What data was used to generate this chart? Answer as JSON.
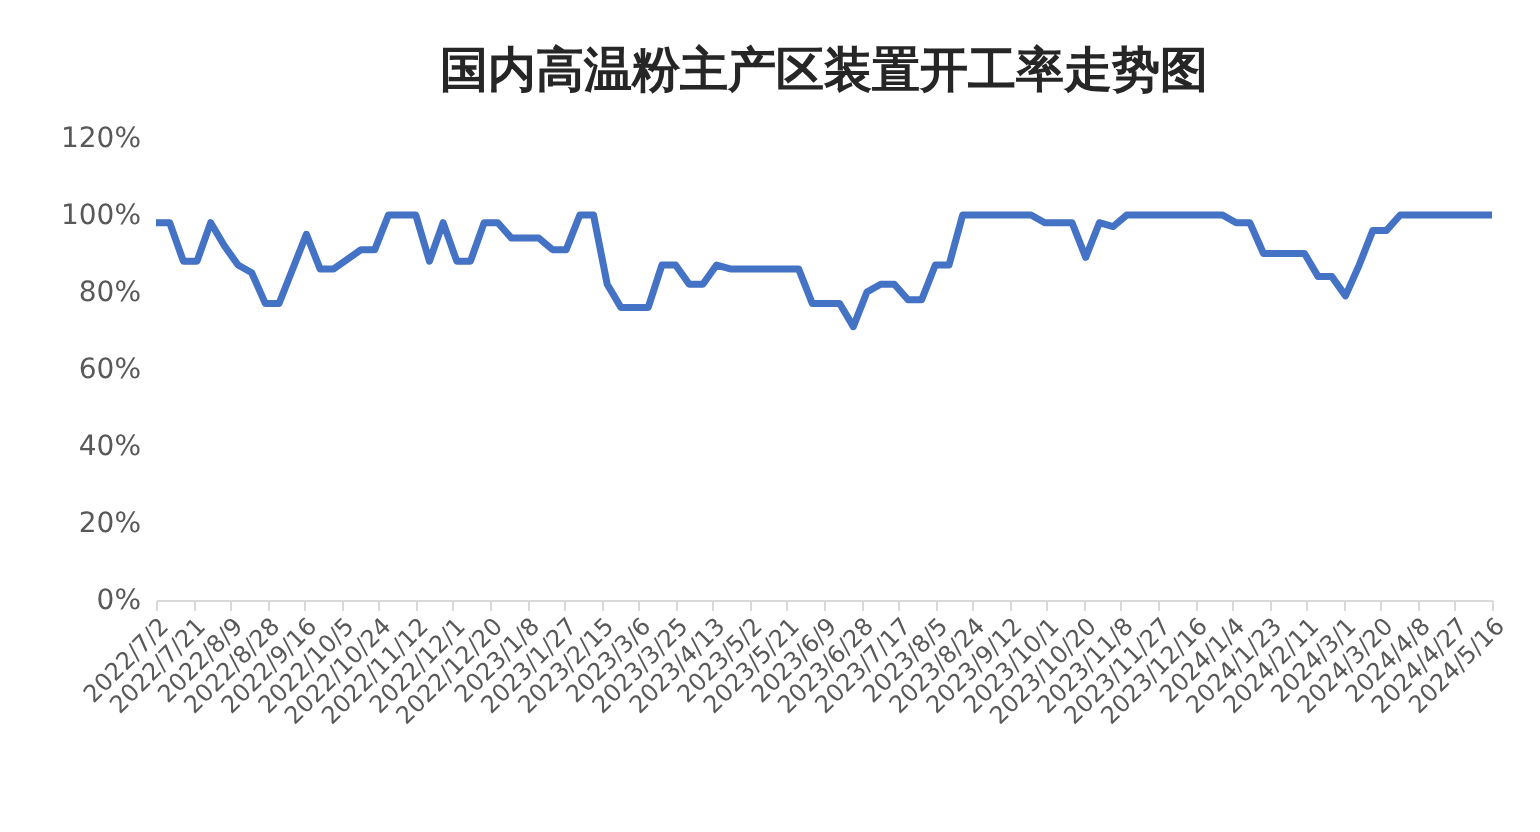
{
  "chart_data": {
    "type": "line",
    "title": "国内高温粉主产区装置开工率走势图",
    "x": [
      "2022-07-02",
      "2022-07-09",
      "2022-07-16",
      "2022-07-23",
      "2022-07-30",
      "2022-08-06",
      "2022-08-13",
      "2022-08-20",
      "2022-08-27",
      "2022-09-03",
      "2022-09-17",
      "2022-09-24",
      "2022-10-01",
      "2022-10-15",
      "2022-10-22",
      "2022-10-29",
      "2022-11-12",
      "2022-11-19",
      "2022-11-26",
      "2022-12-03",
      "2022-12-10",
      "2022-12-17",
      "2022-12-24",
      "2022-12-31",
      "2023-01-14",
      "2023-01-21",
      "2023-01-28",
      "2023-02-04",
      "2023-02-11",
      "2023-02-18",
      "2023-02-25",
      "2023-03-11",
      "2023-03-18",
      "2023-03-25",
      "2023-04-01",
      "2023-04-08",
      "2023-04-15",
      "2023-04-22",
      "2023-05-27",
      "2023-06-03",
      "2023-06-17",
      "2023-06-24",
      "2023-07-01",
      "2023-07-08",
      "2023-07-15",
      "2023-07-22",
      "2023-07-29",
      "2023-08-05",
      "2023-08-12",
      "2023-08-19",
      "2023-09-23",
      "2023-09-30",
      "2023-10-14",
      "2023-10-21",
      "2023-10-28",
      "2023-11-04",
      "2023-11-11",
      "2023-12-30",
      "2024-01-06",
      "2024-01-13",
      "2024-01-20",
      "2024-02-10",
      "2024-02-17",
      "2024-02-24",
      "2024-03-02",
      "2024-03-09",
      "2024-03-16",
      "2024-03-23",
      "2024-03-30",
      "2024-05-16"
    ],
    "series": [
      {
        "color": "#4472c4",
        "values": [
          98,
          98,
          88,
          88,
          98,
          92,
          87,
          85,
          77,
          77,
          95,
          86,
          86,
          91,
          91,
          100,
          100,
          88,
          98,
          88,
          88,
          98,
          98,
          94,
          94,
          91,
          91,
          100,
          100,
          82,
          76,
          76,
          87,
          87,
          82,
          82,
          87,
          86,
          86,
          77,
          77,
          71,
          80,
          82,
          82,
          78,
          78,
          87,
          87,
          100,
          100,
          98,
          98,
          89,
          98,
          97,
          100,
          100,
          98,
          98,
          90,
          90,
          84,
          84,
          79,
          87,
          96,
          96,
          100,
          100
        ]
      }
    ],
    "xlim": [
      "2022-07-02",
      "2024-05-16"
    ],
    "xticks": [
      {
        "value": "2022-07-02",
        "label": "2022/7/2"
      },
      {
        "value": "2022-07-21",
        "label": "2022/7/21"
      },
      {
        "value": "2022-08-09",
        "label": "2022/8/9"
      },
      {
        "value": "2022-08-28",
        "label": "2022/8/28"
      },
      {
        "value": "2022-09-16",
        "label": "2022/9/16"
      },
      {
        "value": "2022-10-05",
        "label": "2022/10/5"
      },
      {
        "value": "2022-10-24",
        "label": "2022/10/24"
      },
      {
        "value": "2022-11-12",
        "label": "2022/11/12"
      },
      {
        "value": "2022-12-01",
        "label": "2022/12/1"
      },
      {
        "value": "2022-12-20",
        "label": "2022/12/20"
      },
      {
        "value": "2023-01-08",
        "label": "2023/1/8"
      },
      {
        "value": "2023-01-27",
        "label": "2023/1/27"
      },
      {
        "value": "2023-02-15",
        "label": "2023/2/15"
      },
      {
        "value": "2023-03-06",
        "label": "2023/3/6"
      },
      {
        "value": "2023-03-25",
        "label": "2023/3/25"
      },
      {
        "value": "2023-04-13",
        "label": "2023/4/13"
      },
      {
        "value": "2023-05-02",
        "label": "2023/5/2"
      },
      {
        "value": "2023-05-21",
        "label": "2023/5/21"
      },
      {
        "value": "2023-06-09",
        "label": "2023/6/9"
      },
      {
        "value": "2023-06-28",
        "label": "2023/6/28"
      },
      {
        "value": "2023-07-17",
        "label": "2023/7/17"
      },
      {
        "value": "2023-08-05",
        "label": "2023/8/5"
      },
      {
        "value": "2023-08-24",
        "label": "2023/8/24"
      },
      {
        "value": "2023-09-12",
        "label": "2023/9/12"
      },
      {
        "value": "2023-10-01",
        "label": "2023/10/1"
      },
      {
        "value": "2023-10-20",
        "label": "2023/10/20"
      },
      {
        "value": "2023-11-08",
        "label": "2023/11/8"
      },
      {
        "value": "2023-11-27",
        "label": "2023/11/27"
      },
      {
        "value": "2023-12-16",
        "label": "2023/12/16"
      },
      {
        "value": "2024-01-04",
        "label": "2024/1/4"
      },
      {
        "value": "2024-01-23",
        "label": "2024/1/23"
      },
      {
        "value": "2024-02-11",
        "label": "2024/2/11"
      },
      {
        "value": "2024-03-01",
        "label": "2024/3/1"
      },
      {
        "value": "2024-03-20",
        "label": "2024/3/20"
      },
      {
        "value": "2024-04-08",
        "label": "2024/4/8"
      },
      {
        "value": "2024-04-27",
        "label": "2024/4/27"
      },
      {
        "value": "2024-05-16",
        "label": "2024/5/16"
      }
    ],
    "ylim": [
      0,
      120
    ],
    "yticks": [
      {
        "value": 0,
        "label": "0%"
      },
      {
        "value": 20,
        "label": "20%"
      },
      {
        "value": 40,
        "label": "40%"
      },
      {
        "value": 60,
        "label": "60%"
      },
      {
        "value": 80,
        "label": "80%"
      },
      {
        "value": 100,
        "label": "100%"
      },
      {
        "value": 120,
        "label": "120%"
      }
    ],
    "grid": false,
    "marker": "none",
    "line_style": "solid"
  }
}
